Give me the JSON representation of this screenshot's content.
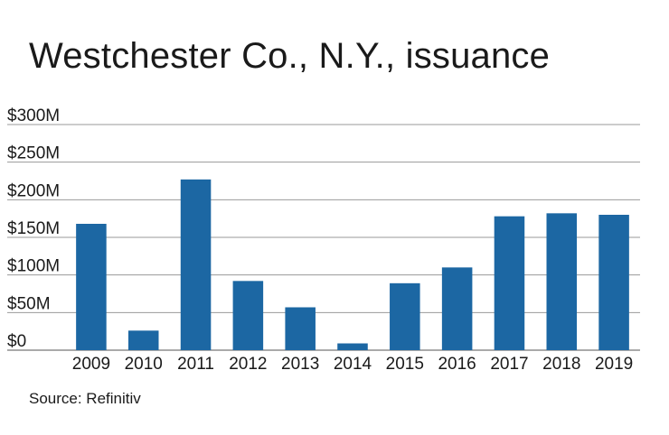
{
  "chart_data": {
    "type": "bar",
    "title": "Westchester Co., N.Y., issuance",
    "xlabel": "",
    "ylabel": "",
    "categories": [
      "2009",
      "2010",
      "2011",
      "2012",
      "2013",
      "2014",
      "2015",
      "2016",
      "2017",
      "2018",
      "2019"
    ],
    "values": [
      168,
      26,
      227,
      92,
      57,
      9,
      89,
      110,
      178,
      182,
      180
    ],
    "unit": "$M",
    "ylim": [
      0,
      300
    ],
    "yticks": [
      0,
      50,
      100,
      150,
      200,
      250,
      300
    ],
    "ytick_labels": [
      "$0",
      "$50M",
      "$100M",
      "$150M",
      "$200M",
      "$250M",
      "$300M"
    ],
    "grid": true,
    "bar_color": "#1c67a3",
    "grid_color": "#9a9a9a"
  },
  "source": "Source: Refinitiv"
}
